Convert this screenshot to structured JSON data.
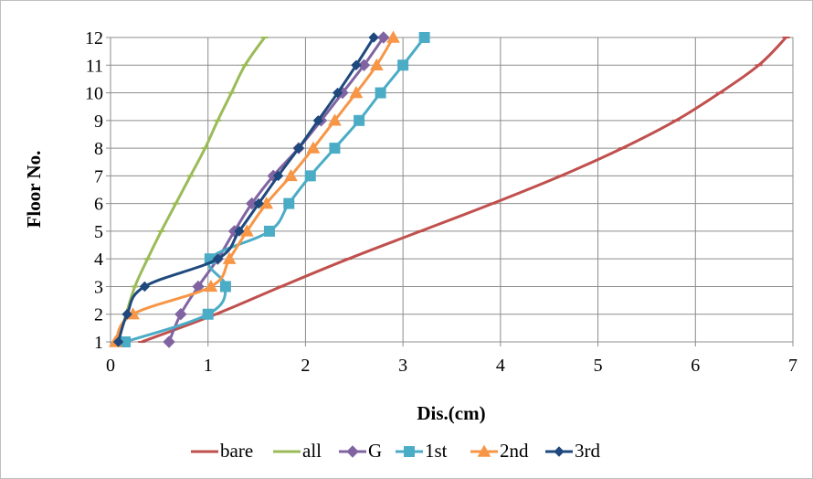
{
  "chart_data": {
    "type": "line",
    "xlabel": "Dis.(cm)",
    "ylabel": "Floor No.",
    "xlim": [
      0,
      7
    ],
    "ylim": [
      1,
      12
    ],
    "x_ticks": [
      0,
      1,
      2,
      3,
      4,
      5,
      6,
      7
    ],
    "y_ticks": [
      1,
      2,
      3,
      4,
      5,
      6,
      7,
      8,
      9,
      10,
      11,
      12
    ],
    "grid": true,
    "legend_position": "bottom",
    "y": [
      1,
      2,
      3,
      4,
      5,
      6,
      7,
      8,
      9,
      10,
      11,
      12
    ],
    "series": [
      {
        "name": "bare",
        "color": "#C0504D",
        "marker": "dash",
        "x": [
          0.32,
          1.08,
          1.75,
          2.44,
          3.18,
          3.92,
          4.62,
          5.25,
          5.8,
          6.25,
          6.65,
          6.93
        ]
      },
      {
        "name": "all",
        "color": "#9BBB59",
        "marker": "dash",
        "x": [
          0.08,
          0.16,
          0.25,
          0.38,
          0.52,
          0.67,
          0.82,
          0.97,
          1.1,
          1.24,
          1.38,
          1.58
        ]
      },
      {
        "name": "G",
        "color": "#8064A2",
        "marker": "diamond",
        "x": [
          0.6,
          0.72,
          0.9,
          1.1,
          1.27,
          1.45,
          1.67,
          1.93,
          2.16,
          2.38,
          2.6,
          2.8
        ]
      },
      {
        "name": "1st",
        "color": "#4BACC6",
        "marker": "square",
        "x": [
          0.15,
          1.0,
          1.18,
          1.02,
          1.63,
          1.83,
          2.05,
          2.3,
          2.55,
          2.77,
          3.0,
          3.22
        ]
      },
      {
        "name": "2nd",
        "color": "#F79646",
        "marker": "triangle",
        "x": [
          0.05,
          0.23,
          1.03,
          1.22,
          1.4,
          1.6,
          1.85,
          2.08,
          2.3,
          2.52,
          2.73,
          2.9
        ]
      },
      {
        "name": "3rd",
        "color": "#1F497D",
        "marker": "diamond-small",
        "x": [
          0.08,
          0.17,
          0.35,
          1.1,
          1.32,
          1.52,
          1.72,
          1.93,
          2.13,
          2.33,
          2.52,
          2.7
        ]
      }
    ]
  }
}
